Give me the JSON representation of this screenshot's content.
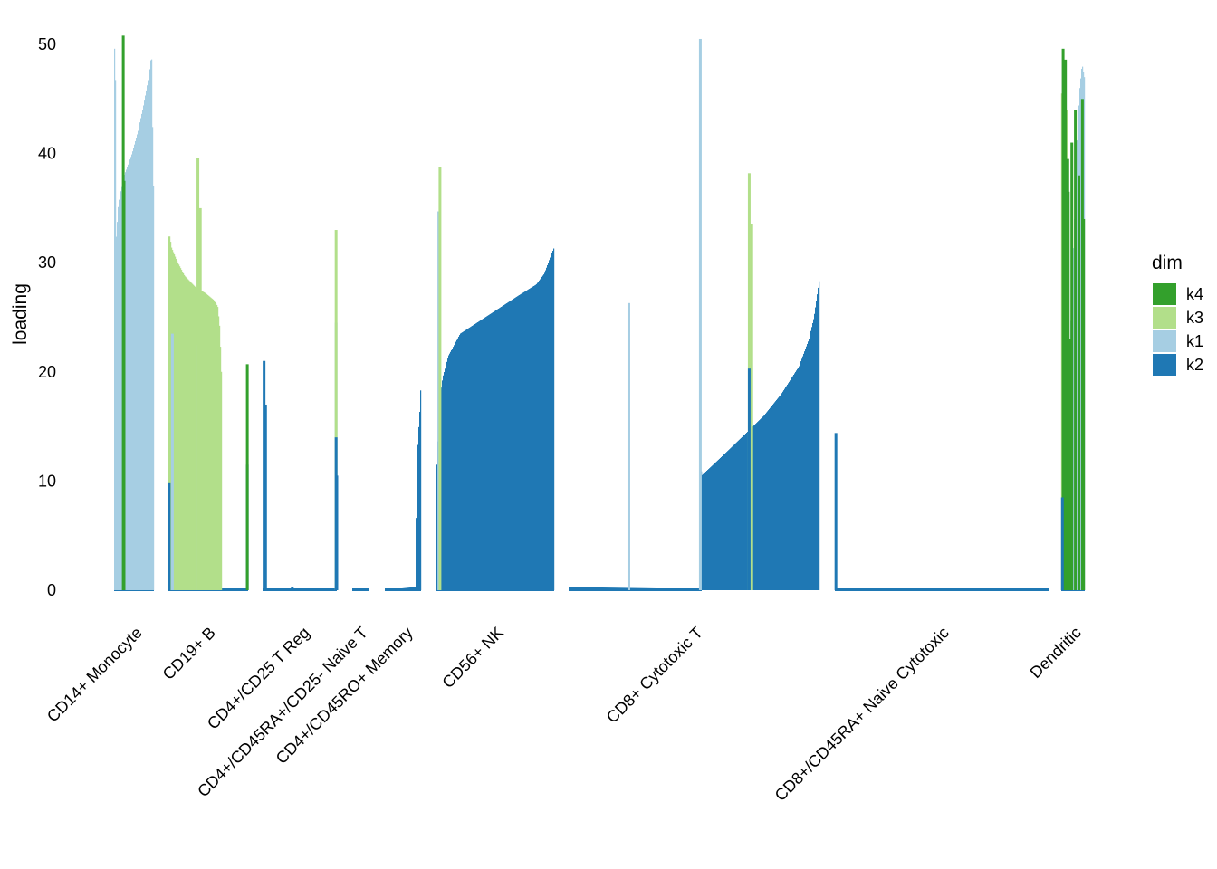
{
  "chart_data": {
    "type": "bar",
    "title": "",
    "xlabel": "",
    "ylabel": "loading",
    "ylim": [
      0,
      51
    ],
    "yticks": [
      0,
      10,
      20,
      30,
      40,
      50
    ],
    "grid": false,
    "legend": {
      "title": "dim",
      "placement": "right",
      "entries": [
        {
          "name": "k4",
          "color": "#33a02c"
        },
        {
          "name": "k3",
          "color": "#b2df8a"
        },
        {
          "name": "k1",
          "color": "#a6cee3"
        },
        {
          "name": "k2",
          "color": "#1f78b4"
        }
      ]
    },
    "groups": [
      {
        "label": "CD14+ Monocyte",
        "n": 44,
        "series": {
          "k1": {
            "profile": [
              [
                0,
                49.6
              ],
              [
                0.02,
                49.6
              ],
              [
                0.04,
                32.0
              ],
              [
                0.1,
                35.5
              ],
              [
                0.25,
                38.0
              ],
              [
                0.45,
                40.0
              ],
              [
                0.6,
                42.0
              ],
              [
                0.75,
                44.5
              ],
              [
                0.85,
                46.5
              ],
              [
                0.92,
                48.0
              ],
              [
                0.95,
                49.6
              ],
              [
                0.97,
                44.0
              ],
              [
                1,
                37.0
              ]
            ]
          },
          "k4": {
            "spikes": [
              [
                0.23,
                50.8
              ],
              [
                0.25,
                37.5
              ]
            ]
          }
        }
      },
      {
        "label": "CD19+ B",
        "n": 88,
        "series": {
          "k3": {
            "from": 0,
            "to": 0.67,
            "profile": [
              [
                0,
                32.4
              ],
              [
                0.02,
                32.4
              ],
              [
                0.05,
                31.4
              ],
              [
                0.15,
                30.2
              ],
              [
                0.3,
                28.8
              ],
              [
                0.5,
                27.8
              ],
              [
                0.7,
                27.2
              ],
              [
                0.85,
                26.6
              ],
              [
                0.93,
                26.0
              ],
              [
                0.97,
                24.0
              ],
              [
                1,
                20.0
              ]
            ]
          },
          "k1": {
            "spikes": [
              [
                0.37,
                22.5
              ],
              [
                0.05,
                23.5
              ]
            ]
          },
          "k3_spikes": {
            "spikes": [
              [
                0.37,
                39.6
              ],
              [
                0.4,
                35.0
              ]
            ]
          },
          "k2": {
            "spikes": [
              [
                0.01,
                9.8
              ],
              [
                0.99,
                11.5
              ]
            ]
          },
          "k4": {
            "spikes": [
              [
                0.99,
                20.7
              ]
            ]
          }
        }
      },
      {
        "label": "CD4+/CD25 T Reg",
        "n": 44,
        "series": {
          "k2": {
            "spikes": [
              [
                0.02,
                21.0
              ],
              [
                0.04,
                17.0
              ],
              [
                0.4,
                0.3
              ]
            ]
          },
          "k1": {
            "spikes": [
              [
                0.99,
                24.5
              ]
            ]
          },
          "k3": {
            "spikes": [
              [
                0.99,
                33.0
              ]
            ]
          },
          "k2_b": {
            "spikes": [
              [
                0.99,
                14.0
              ],
              [
                1.0,
                10.5
              ]
            ]
          }
        }
      },
      {
        "label": "CD4+/CD45RA+/CD25- Naive T",
        "n": 16,
        "series": {}
      },
      {
        "label": "CD4+/CD45RO+ Memory",
        "n": 28,
        "series": {
          "k2": {
            "profile": [
              [
                0,
                0
              ],
              [
                0.85,
                0.3
              ],
              [
                0.88,
                9.0
              ],
              [
                0.93,
                14.0
              ],
              [
                0.97,
                16.0
              ],
              [
                1,
                18.3
              ]
            ]
          }
        }
      },
      {
        "label": "CD56+ NK",
        "n": 192,
        "series": {
          "k2": {
            "profile": [
              [
                0,
                11.5
              ],
              [
                0.02,
                17.0
              ],
              [
                0.05,
                19.5
              ],
              [
                0.1,
                21.5
              ],
              [
                0.2,
                23.5
              ],
              [
                0.3,
                24.2
              ],
              [
                0.5,
                25.6
              ],
              [
                0.7,
                27.0
              ],
              [
                0.85,
                28.0
              ],
              [
                0.92,
                29.0
              ],
              [
                0.97,
                30.5
              ],
              [
                1,
                31.3
              ]
            ]
          },
          "k1": {
            "spikes": [
              [
                0.02,
                34.7
              ]
            ]
          },
          "k3": {
            "spikes": [
              [
                0.03,
                38.8
              ]
            ]
          }
        }
      },
      {
        "label": "CD8+ Cytotoxic T",
        "n": 374,
        "series": {
          "k2": {
            "profile": [
              [
                0,
                0.3
              ],
              [
                0.52,
                0.1
              ],
              [
                0.525,
                12.4
              ],
              [
                0.53,
                10.5
              ],
              [
                0.6,
                12.0
              ],
              [
                0.7,
                14.2
              ],
              [
                0.78,
                16.0
              ],
              [
                0.85,
                18.0
              ],
              [
                0.92,
                20.5
              ],
              [
                0.96,
                23.0
              ],
              [
                0.98,
                25.0
              ],
              [
                1,
                28.3
              ]
            ]
          },
          "k1": {
            "spikes": [
              [
                0.24,
                26.3
              ],
              [
                0.525,
                50.5
              ]
            ]
          },
          "k3": {
            "spikes": [
              [
                0.72,
                38.2
              ],
              [
                0.73,
                33.5
              ]
            ]
          },
          "k2_b": {
            "spikes": [
              [
                0.72,
                20.3
              ]
            ]
          }
        }
      },
      {
        "label": "CD8+/CD45RA+ Naive Cytotoxic",
        "n": 310,
        "series": {
          "k2": {
            "spikes": [
              [
                0.005,
                14.4
              ]
            ]
          }
        }
      },
      {
        "label": "Dendritic",
        "n": 32,
        "series": {
          "k1": {
            "profile": [
              [
                0,
                0
              ],
              [
                0.1,
                12.0
              ],
              [
                0.2,
                18.0
              ],
              [
                0.35,
                22.0
              ],
              [
                0.5,
                30.0
              ],
              [
                0.65,
                40.0
              ],
              [
                0.8,
                46.0
              ],
              [
                0.9,
                48.2
              ],
              [
                1,
                47.0
              ]
            ]
          },
          "k3": {
            "spikes": [
              [
                0.05,
                45.5
              ],
              [
                0.15,
                46.0
              ],
              [
                0.25,
                44.0
              ]
            ]
          },
          "k4": {
            "spikes": [
              [
                0.08,
                49.6
              ],
              [
                0.18,
                48.6
              ],
              [
                0.28,
                39.5
              ],
              [
                0.3,
                36.5
              ],
              [
                0.35,
                23.0
              ],
              [
                0.45,
                41.0
              ],
              [
                0.6,
                44.0
              ],
              [
                0.75,
                38.0
              ],
              [
                0.9,
                45.0
              ],
              [
                0.95,
                34.0
              ]
            ]
          },
          "k2": {
            "spikes": [
              [
                0.05,
                8.5
              ]
            ]
          }
        }
      }
    ]
  }
}
